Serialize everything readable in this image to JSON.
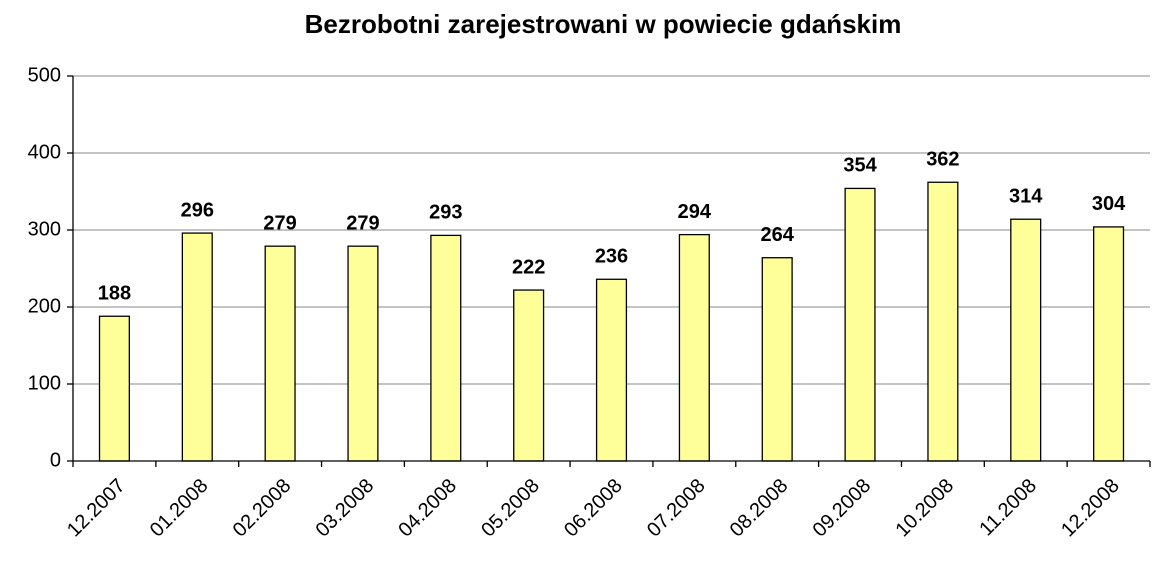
{
  "chart_data": {
    "type": "bar",
    "title": "Bezrobotni zarejestrowani w powiecie gdańskim",
    "categories": [
      "12.2007",
      "01.2008",
      "02.2008",
      "03.2008",
      "04.2008",
      "05.2008",
      "06.2008",
      "07.2008",
      "08.2008",
      "09.2008",
      "10.2008",
      "11.2008",
      "12.2008"
    ],
    "values": [
      188,
      296,
      279,
      279,
      293,
      222,
      236,
      294,
      264,
      354,
      362,
      314,
      304
    ],
    "color": "#ffff99",
    "ylim": [
      0,
      500
    ],
    "yticks": [
      0,
      100,
      200,
      300,
      400,
      500
    ],
    "grid": true
  }
}
